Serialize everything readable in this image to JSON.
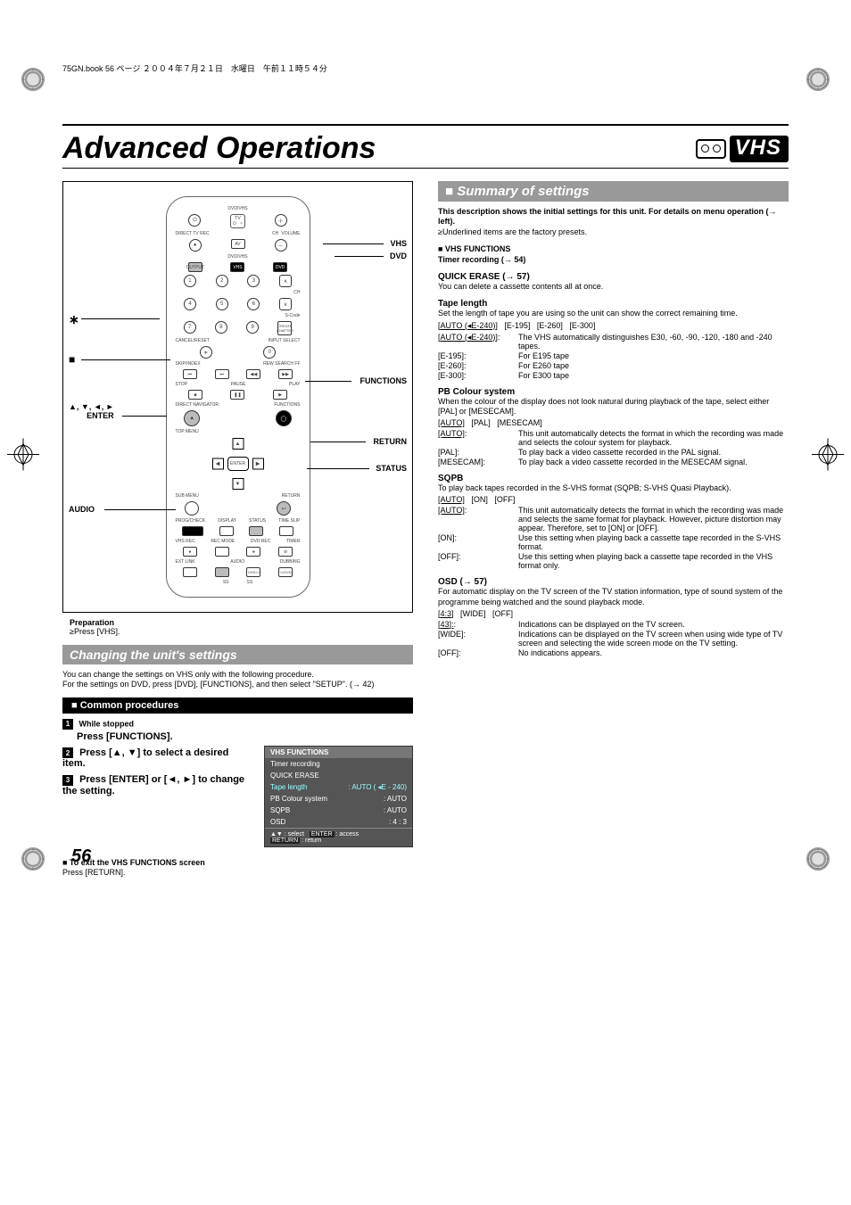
{
  "book_header": "75GN.book  56 ページ  ２００４年７月２１日　水曜日　午前１１時５４分",
  "page_number": "56",
  "doc_title": "Advanced Operations",
  "badge_text": "VHS",
  "remote": {
    "labels": {
      "vhs": "VHS",
      "dvd": "DVD",
      "asterisk": "∗",
      "stop_square": "■",
      "functions": "FUNCTIONS",
      "arrows": "▲, ▼, ◄, ►\nENTER",
      "return": "RETURN",
      "status": "STATUS",
      "audio": "AUDIO"
    },
    "tiny_text": {
      "dvdvhs": "DVD/VHS",
      "tv": "TV",
      "directtvrec": "DIRECT TV REC",
      "av": "AV",
      "ch": "CH",
      "volume": "VOLUME",
      "dvdvhs2": "DVD/VHS",
      "output": "OUTPUT",
      "vhs": "VHS",
      "dvd": "DVD",
      "progadvance": "PROG/ADVANCE",
      "scode": "S-Code",
      "cancelreset": "CANCEL/RESET",
      "inputselect": "INPUT SELECT",
      "createchapter": "CREATE\nCHAPTER",
      "skipindex": "SKIP/INDEX",
      "rewsearchff": "REW  SEARCH  FF",
      "stop": "STOP",
      "pause": "PAUSE",
      "play": "PLAY",
      "directnavigator": "DIRECT NAVIGATOR",
      "functions": "FUNCTIONS",
      "topmenu": "TOP MENU",
      "enter": "ENTER",
      "submenu": "SUB MENU",
      "return": "RETURN",
      "progcheck": "PROG/CHECK",
      "display": "DISPLAY",
      "status": "STATUS",
      "timeslip": "TIME SLIP",
      "vhsrec": "VHS REC",
      "recmode": "REC MODE",
      "dvdrec": "DVD REC",
      "timer": "TIMER",
      "extlink": "EXT LINK",
      "audio": "AUDIO",
      "dubbing": "DUBBING",
      "vhstodvd": "VHS>>",
      "dvdlabel": "<<DVD",
      "ss": "SS"
    }
  },
  "preparation": {
    "title": "Preparation",
    "line1": "≥Press [VHS]."
  },
  "left": {
    "changing_title": "Changing the unit's settings",
    "changing_body1": "You can change the settings on VHS only with the following procedure.",
    "changing_body2": "For the settings on DVD, press [DVD], [FUNCTIONS], and then select \"SETUP\". (→ 42)",
    "common_title": "■  Common procedures",
    "step1_a": "While stopped",
    "step1_b": "Press [FUNCTIONS].",
    "step2": "Press [▲, ▼] to select a desired item.",
    "step3": "Press [ENTER] or [◄, ►] to change the setting.",
    "exit_title": "■ To exit the VHS FUNCTIONS screen",
    "exit_body": "Press [RETURN].",
    "func_panel": {
      "header": "VHS FUNCTIONS",
      "items": [
        {
          "label": "Timer recording",
          "value": ""
        },
        {
          "label": "QUICK ERASE",
          "value": ""
        },
        {
          "label": "Tape length",
          "value": ":  AUTO ( ◂E - 240)",
          "hi": true
        },
        {
          "label": "PB  Colour  system",
          "value": ":  AUTO"
        },
        {
          "label": "SQPB",
          "value": ":  AUTO"
        },
        {
          "label": "OSD",
          "value": ":  4 : 3"
        }
      ],
      "footer_select": "▲▼  : select",
      "footer_enter": "ENTER : access",
      "footer_return": "RETURN : return"
    }
  },
  "right": {
    "summary_title": "■ Summary of settings",
    "intro1": "This description shows the initial settings for this unit. For details on menu operation (→ left).",
    "intro2": "≥Underlined items are the factory presets.",
    "vhs_functions": "■ VHS FUNCTIONS",
    "timer_rec": "Timer recording (→ 54)",
    "quick_erase_title": "QUICK ERASE (→ 57)",
    "quick_erase_body": "You can delete a cassette contents all at once.",
    "tape_len_title": "Tape length",
    "tape_len_body": "Set the length of tape you are using so the unit can show the correct remaining time.",
    "tape_len_opts": "[AUTO (◂E-240)]   [E-195]   [E-260]   [E-300]",
    "tape_len_rows": [
      {
        "k": "[AUTO (◂E-240)]:",
        "v": "The VHS automatically distinguishes E30, -60, -90, -120, -180 and -240 tapes.",
        "u": true
      },
      {
        "k": "[E-195]:",
        "v": "For E195 tape"
      },
      {
        "k": "[E-260]:",
        "v": "For E260 tape"
      },
      {
        "k": "[E-300]:",
        "v": "For E300 tape"
      }
    ],
    "pb_title": "PB Colour system",
    "pb_body": "When the colour of the display does not look natural during playback of the tape, select either [PAL] or [MESECAM].",
    "pb_opts": "[AUTO]   [PAL]   [MESECAM]",
    "pb_rows": [
      {
        "k": "[AUTO]:",
        "v": "This unit automatically detects the format in which the recording was made and selects the colour system for playback.",
        "u": true
      },
      {
        "k": "[PAL]:",
        "v": "To play back a video cassette recorded in the PAL signal."
      },
      {
        "k": "[MESECAM]:",
        "v": "To play back a video cassette recorded in the MESECAM signal."
      }
    ],
    "sqpb_title": "SQPB",
    "sqpb_body": "To play back tapes recorded in the S-VHS format (SQPB; S-VHS Quasi Playback).",
    "sqpb_opts": "[AUTO]   [ON]   [OFF]",
    "sqpb_rows": [
      {
        "k": "[AUTO]:",
        "v": "This unit automatically detects the format in which the recording was made and selects the same format for playback. However, picture distortion may appear. Therefore, set to [ON] or [OFF].",
        "u": true
      },
      {
        "k": "[ON]:",
        "v": "Use this setting when playing back a cassette tape recorded in the S-VHS format."
      },
      {
        "k": "[OFF]:",
        "v": "Use this setting when playing back a cassette tape recorded in the VHS format only."
      }
    ],
    "osd_title": "OSD (→ 57)",
    "osd_body": "For automatic display on the TV screen of the TV station information, type of sound system of the programme being watched and the sound playback mode.",
    "osd_opts": "[4:3]   [WIDE]   [OFF]",
    "osd_rows": [
      {
        "k": "[4:3]:",
        "v": "Indications can be displayed on the TV screen.",
        "u": true
      },
      {
        "k": "[WIDE]:",
        "v": "Indications can be displayed on the TV screen when using wide type of TV screen and selecting the wide screen mode on the TV setting."
      },
      {
        "k": "[OFF]:",
        "v": "No indications appears."
      }
    ]
  },
  "colors": {
    "section_bar_bg": "#999999",
    "sub_bar_bg": "#000000",
    "func_panel_bg": "#555555",
    "func_panel_hi": "#99ffff"
  }
}
